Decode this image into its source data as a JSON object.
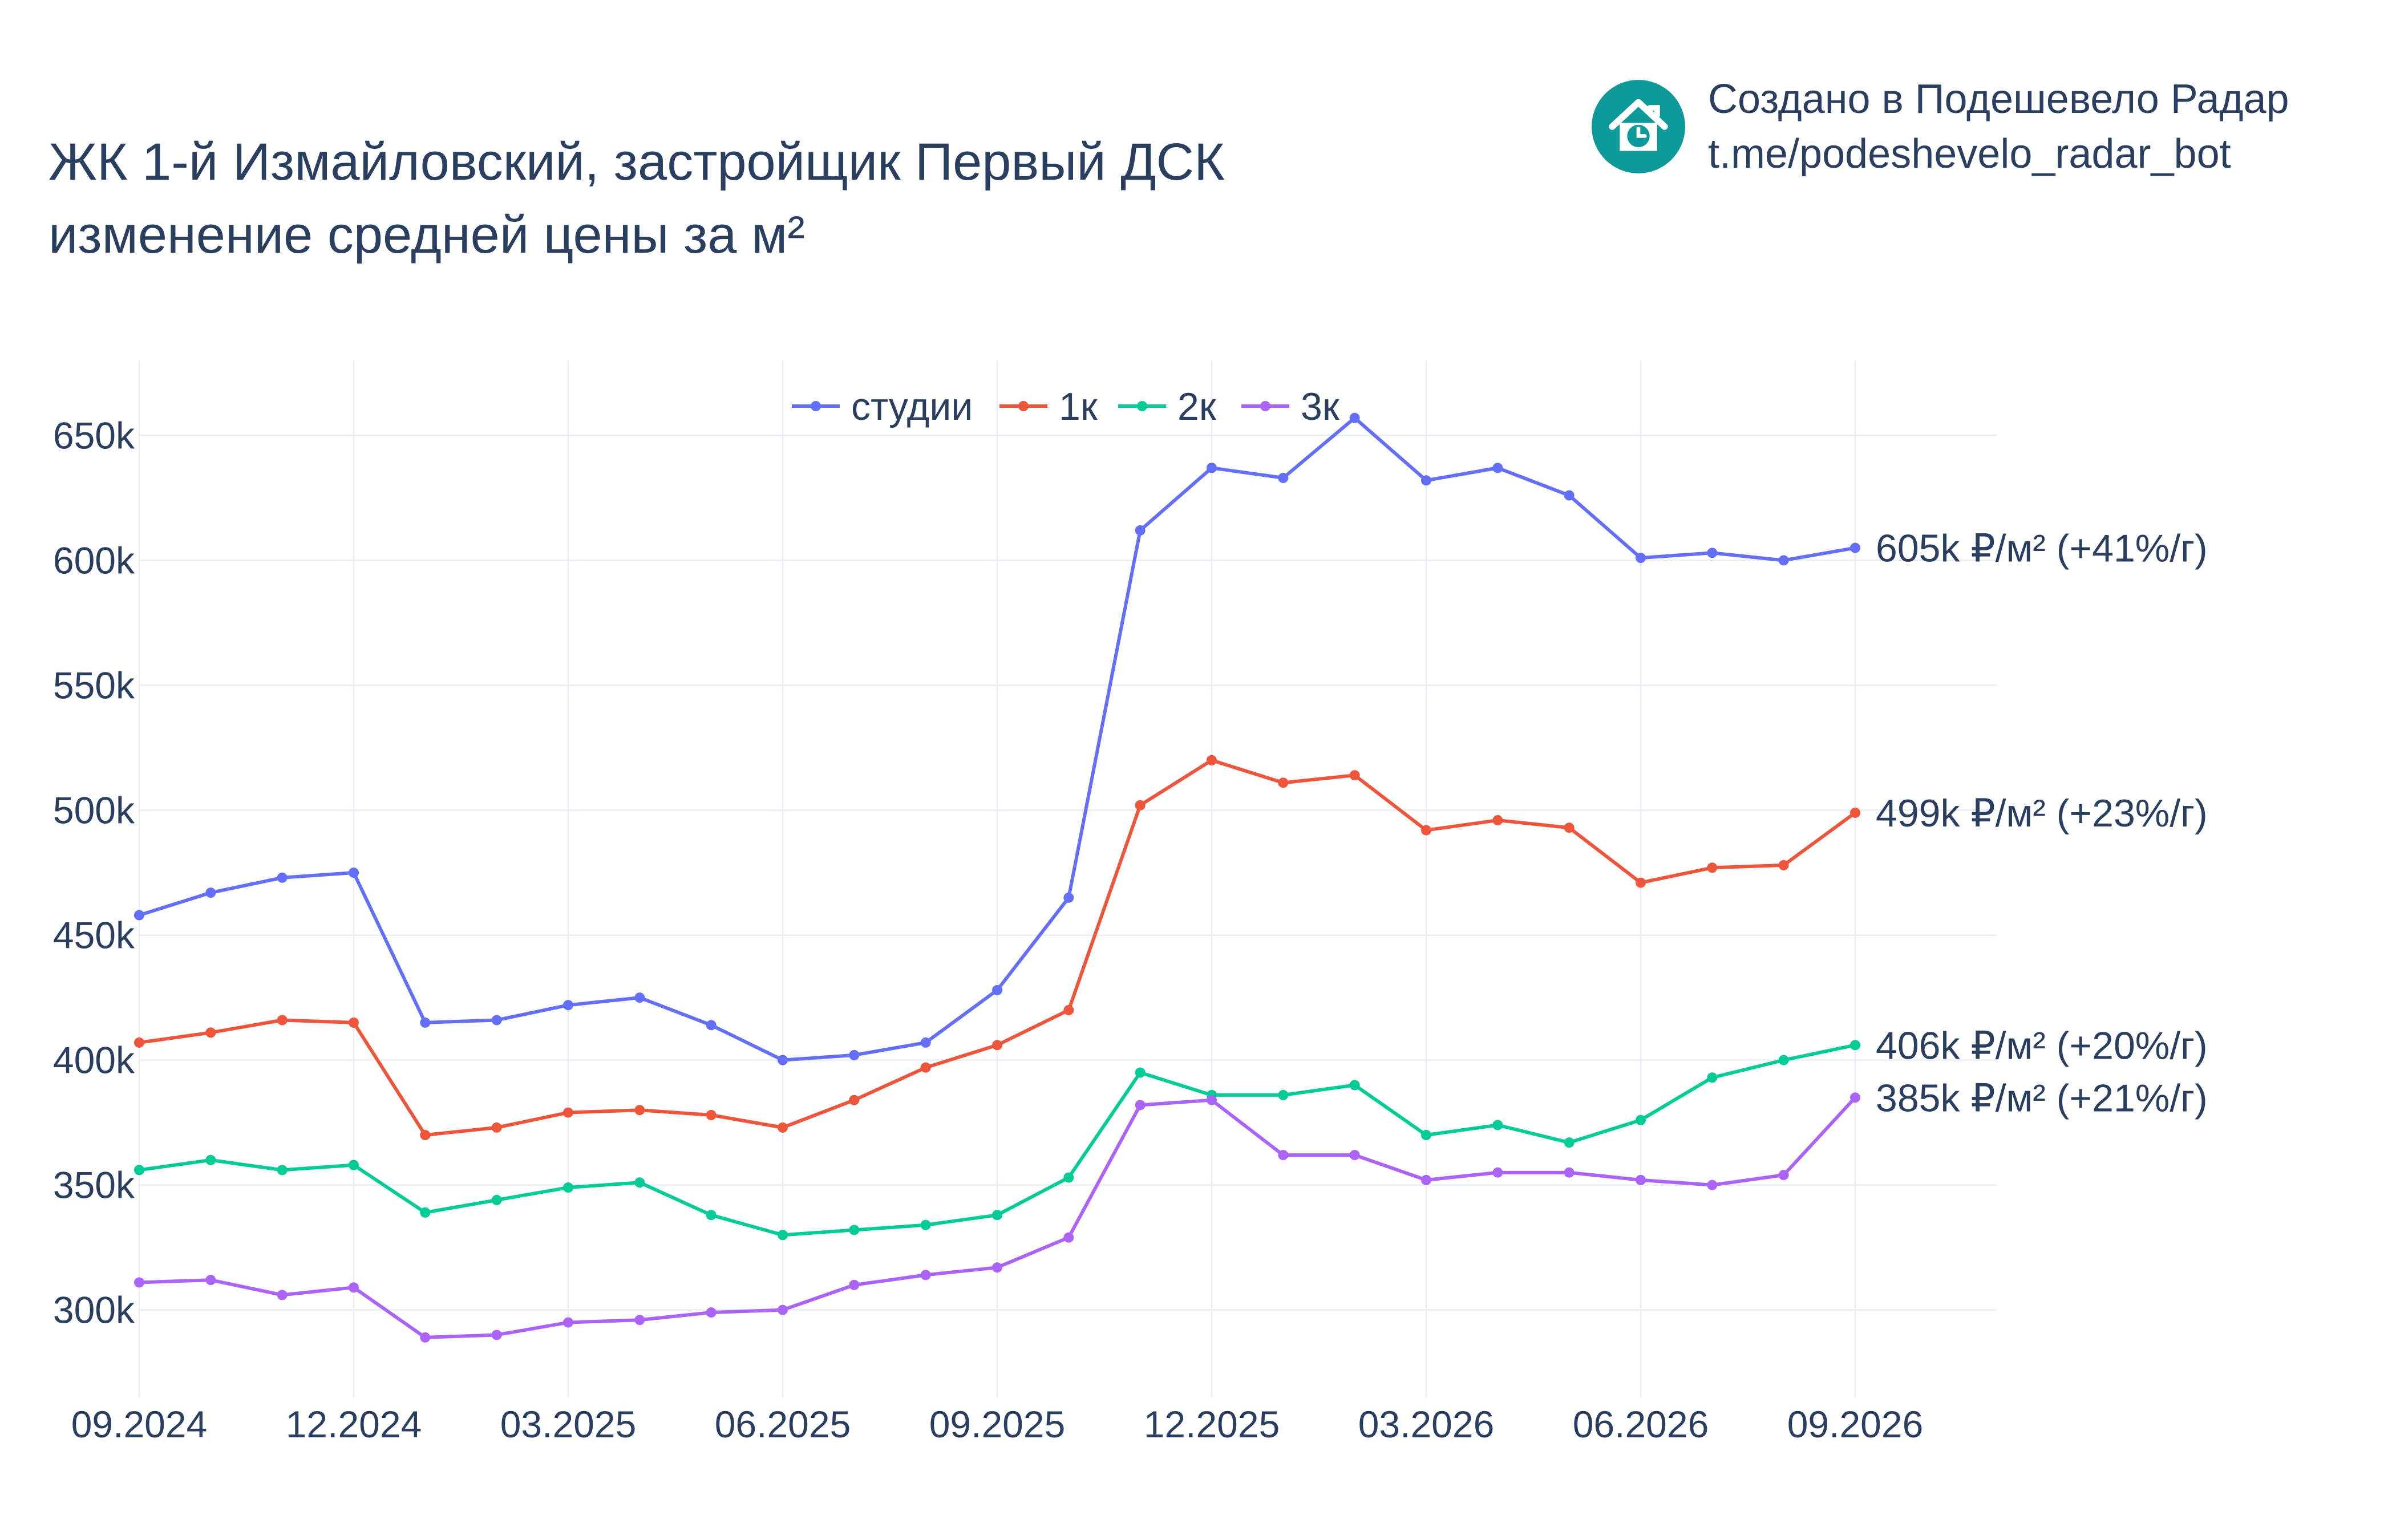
{
  "title": {
    "line1": "ЖК 1-й Измайловский, застройщик Первый ДСК",
    "line2": "изменение средней цены за м²"
  },
  "brand": {
    "icon": "house-clock-logo-icon",
    "line1": "Создано в Подешевело Радар",
    "line2": "t.me/podeshevelo_radar_bot",
    "color": "#0e9a9b"
  },
  "chart_data": {
    "type": "line",
    "x": [
      "09.2024",
      "10.2024",
      "11.2024",
      "12.2024",
      "01.2025",
      "02.2025",
      "03.2025",
      "04.2025",
      "05.2025",
      "06.2025",
      "07.2025",
      "08.2025",
      "09.2025",
      "10.2025",
      "11.2025",
      "12.2025",
      "01.2026",
      "02.2026",
      "03.2026",
      "04.2026",
      "05.2026",
      "06.2026",
      "07.2026",
      "08.2026",
      "09.2026"
    ],
    "x_tick_labels": [
      "09.2024",
      "12.2024",
      "03.2025",
      "06.2025",
      "09.2025",
      "12.2025",
      "03.2026",
      "06.2026",
      "09.2026"
    ],
    "y_tick_labels": [
      "300k",
      "350k",
      "400k",
      "450k",
      "500k",
      "550k",
      "600k",
      "650k"
    ],
    "ylim": [
      265000,
      680000
    ],
    "grid": true,
    "legend_position": "top-center",
    "series": [
      {
        "name": "студии",
        "color": "#636efa",
        "end_label": "605k ₽/м² (+41%/г)",
        "values": [
          458000,
          467000,
          473000,
          475000,
          415000,
          416000,
          422000,
          425000,
          414000,
          400000,
          402000,
          407000,
          428000,
          465000,
          612000,
          637000,
          633000,
          657000,
          632000,
          637000,
          626000,
          601000,
          603000,
          600000,
          605000
        ]
      },
      {
        "name": "1к",
        "color": "#ef553b",
        "end_label": "499k ₽/м² (+23%/г)",
        "values": [
          407000,
          411000,
          416000,
          415000,
          370000,
          373000,
          379000,
          380000,
          378000,
          373000,
          384000,
          397000,
          406000,
          420000,
          502000,
          520000,
          511000,
          514000,
          492000,
          496000,
          493000,
          471000,
          477000,
          478000,
          499000
        ]
      },
      {
        "name": "2к",
        "color": "#00cc96",
        "end_label": "406k ₽/м² (+20%/г)",
        "values": [
          356000,
          360000,
          356000,
          358000,
          339000,
          344000,
          349000,
          351000,
          338000,
          330000,
          332000,
          334000,
          338000,
          353000,
          395000,
          386000,
          386000,
          390000,
          370000,
          374000,
          367000,
          376000,
          393000,
          400000,
          406000
        ]
      },
      {
        "name": "3к",
        "color": "#ab63fa",
        "end_label": "385k ₽/м² (+21%/г)",
        "values": [
          311000,
          312000,
          306000,
          309000,
          289000,
          290000,
          295000,
          296000,
          299000,
          300000,
          310000,
          314000,
          317000,
          329000,
          382000,
          384000,
          362000,
          362000,
          352000,
          355000,
          355000,
          352000,
          350000,
          354000,
          385000
        ]
      }
    ]
  }
}
